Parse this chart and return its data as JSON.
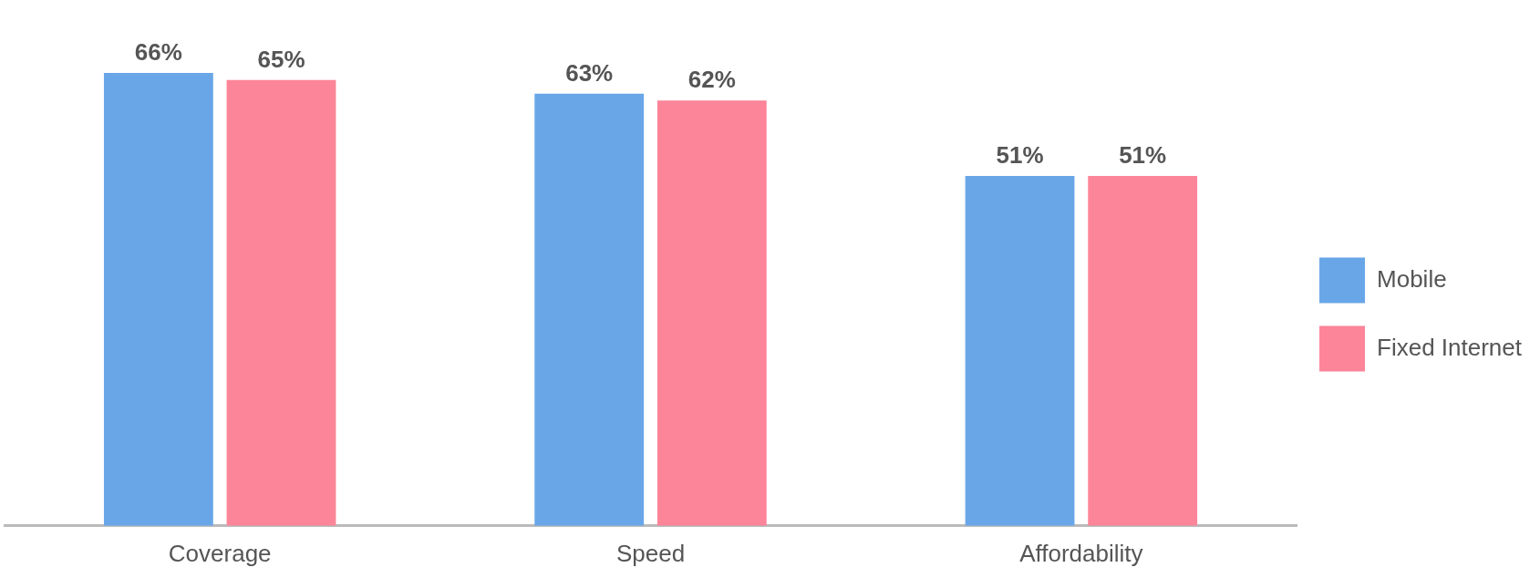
{
  "chart_data": {
    "type": "bar",
    "categories": [
      "Coverage",
      "Speed",
      "Affordability"
    ],
    "series": [
      {
        "name": "Mobile",
        "color": "#68a6e8",
        "values": [
          66,
          63,
          51
        ],
        "value_labels": [
          "66%",
          "63%",
          "51%"
        ]
      },
      {
        "name": "Fixed Internet",
        "color": "#fc8599",
        "values": [
          65,
          62,
          51
        ],
        "value_labels": [
          "65%",
          "62%",
          "51%"
        ]
      }
    ],
    "legend": "right",
    "grid": false,
    "tick_labels": "x"
  }
}
